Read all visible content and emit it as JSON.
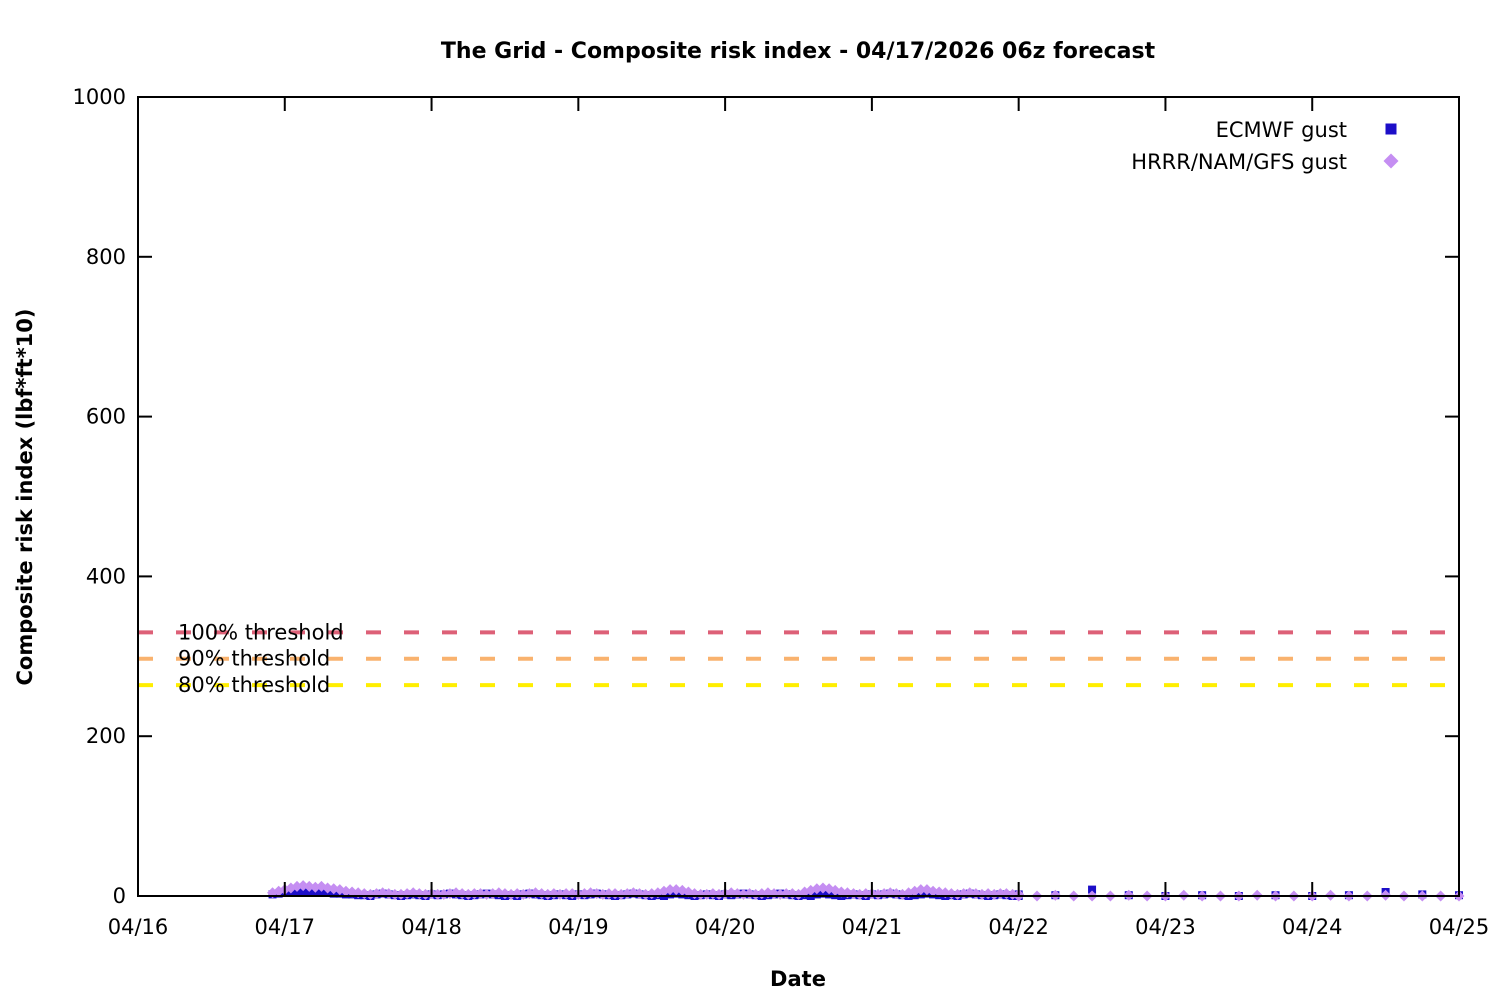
{
  "chart_data": {
    "type": "scatter",
    "title": "The Grid - Composite risk index - 04/17/2026 06z forecast",
    "xlabel": "Date",
    "ylabel": "Composite risk index (lbf*ft*10)",
    "x_axis": {
      "tick_labels": [
        "04/16",
        "04/17",
        "04/18",
        "04/19",
        "04/20",
        "04/21",
        "04/22",
        "04/23",
        "04/24",
        "04/25"
      ],
      "range_days": [
        0,
        9
      ],
      "unit": "days since 04/16"
    },
    "y_axis": {
      "ticks": [
        0,
        200,
        400,
        600,
        800,
        1000
      ],
      "ylim": [
        0,
        1000
      ]
    },
    "grid": "off",
    "legend_position": "top-right-inside",
    "thresholds": [
      {
        "label": "100% threshold",
        "value": 330,
        "color": "#dd6077",
        "style": "dashed"
      },
      {
        "label": "90% threshold",
        "value": 297,
        "color": "#f9b26e",
        "style": "dashed"
      },
      {
        "label": "80% threshold",
        "value": 264,
        "color": "#ffee00",
        "style": "dashed"
      }
    ],
    "series": [
      {
        "name": "ECMWF gust",
        "marker": "square",
        "color": "#1c0ec8",
        "segments": [
          {
            "x_start": 0.9167,
            "x_step": 0.0416667,
            "values": [
              2,
              3,
              4,
              5,
              6,
              6,
              5,
              4,
              5,
              4,
              3,
              3,
              2,
              2,
              1,
              1,
              0,
              2,
              3,
              2,
              1,
              0,
              1,
              2,
              1,
              0,
              2,
              1,
              2,
              3,
              2,
              1,
              0,
              1,
              2,
              3,
              2,
              1,
              0,
              1,
              0,
              2,
              3,
              2,
              1,
              0,
              1,
              2,
              1,
              0,
              2,
              1,
              2,
              3,
              2,
              1,
              0,
              1,
              2,
              3,
              2,
              1,
              0,
              1,
              0,
              2,
              3,
              2,
              1,
              0,
              1,
              2,
              1,
              0,
              2,
              1,
              2,
              3,
              2,
              1,
              0,
              1,
              2,
              3,
              2,
              1,
              0,
              1,
              0,
              2,
              3,
              2,
              1,
              0,
              1,
              2,
              1,
              0,
              2,
              1,
              2,
              3,
              2,
              1,
              0,
              1,
              2,
              3,
              2,
              1,
              0,
              1,
              0,
              2,
              3,
              2,
              1,
              0,
              1,
              2,
              1,
              0,
              2
            ]
          },
          {
            "x_start": 6.0,
            "x_step": 0.25,
            "values": [
              0,
              1,
              8,
              1,
              0,
              1,
              0,
              1,
              0,
              1,
              5,
              2,
              1
            ]
          }
        ]
      },
      {
        "name": "HRRR/NAM/GFS gust",
        "marker": "diamond",
        "color": "#c58ef2",
        "segments": [
          {
            "x_start": 0.9167,
            "x_step": 0.0416667,
            "values": [
              4,
              6,
              8,
              10,
              12,
              13,
              12,
              11,
              12,
              10,
              9,
              8,
              6,
              5,
              4,
              3,
              2,
              3,
              4,
              3,
              2,
              2,
              3,
              4,
              3,
              2,
              3,
              2,
              2,
              3,
              4,
              3,
              2,
              3,
              3,
              2,
              3,
              4,
              3,
              2,
              3,
              2,
              3,
              4,
              3,
              2,
              3,
              2,
              3,
              3,
              2,
              3,
              4,
              3,
              2,
              3,
              3,
              2,
              3,
              4,
              3,
              2,
              3,
              4,
              6,
              8,
              8,
              7,
              5,
              3,
              2,
              2,
              3,
              2,
              3,
              4,
              3,
              2,
              3,
              2,
              3,
              4,
              3,
              2,
              3,
              3,
              2,
              5,
              7,
              9,
              10,
              9,
              7,
              5,
              4,
              3,
              2,
              3,
              3,
              2,
              3,
              4,
              3,
              2,
              4,
              6,
              8,
              8,
              6,
              5,
              4,
              3,
              2,
              3,
              4,
              3,
              2,
              3,
              2,
              3,
              3,
              2,
              2
            ]
          },
          {
            "x_start": 6.0,
            "x_step": 0.125,
            "values": [
              0,
              0,
              1,
              0,
              0,
              0,
              1,
              0,
              0,
              1,
              0,
              0,
              0,
              1,
              0,
              0,
              0,
              1,
              0,
              0,
              1,
              0,
              0,
              0,
              0
            ]
          }
        ]
      }
    ]
  },
  "legend": {
    "items": [
      {
        "label": "ECMWF gust"
      },
      {
        "label": "HRRR/NAM/GFS gust"
      }
    ]
  }
}
